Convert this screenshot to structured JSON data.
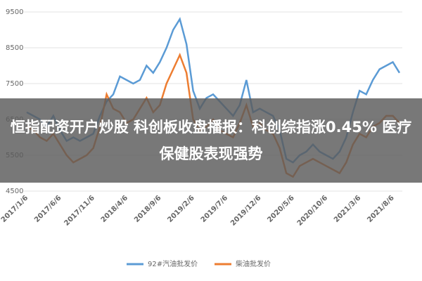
{
  "chart_data": {
    "type": "line",
    "categories": [
      "2017/1/6",
      null,
      null,
      null,
      null,
      "2017/6/6",
      null,
      null,
      null,
      null,
      "2017/11/6",
      null,
      null,
      null,
      null,
      "2018/4/6",
      null,
      null,
      null,
      null,
      "2018/9/6",
      null,
      null,
      null,
      null,
      "2019/2/6",
      null,
      null,
      null,
      null,
      "2019/7/6",
      null,
      null,
      null,
      null,
      "2019/12/6",
      null,
      null,
      null,
      null,
      "2020/5/6",
      null,
      null,
      null,
      null,
      "2020/10/6",
      null,
      null,
      null,
      null,
      "2021/3/6",
      null,
      null,
      null,
      null,
      "2021/8/6",
      null
    ],
    "series": [
      {
        "name": "92#汽油批发价",
        "color": "#5b9bd5",
        "values": [
          6700,
          6600,
          6500,
          6300,
          6600,
          6200,
          5900,
          6000,
          5900,
          6000,
          6100,
          6600,
          7000,
          7200,
          7700,
          7600,
          7500,
          7600,
          8000,
          7800,
          8100,
          8500,
          9000,
          9300,
          8600,
          7300,
          6800,
          7100,
          7200,
          7000,
          6800,
          6600,
          6900,
          7600,
          6700,
          6800,
          6700,
          6600,
          6200,
          5400,
          5300,
          5500,
          5600,
          5800,
          5600,
          5500,
          5400,
          5600,
          6000,
          6700,
          7300,
          7200,
          7600,
          7900,
          8000,
          8100,
          7800
        ]
      },
      {
        "name": "柴油批发价",
        "color": "#ed7d31",
        "values": [
          6300,
          6200,
          6000,
          5900,
          6100,
          5800,
          5500,
          5300,
          5400,
          5500,
          5700,
          6300,
          7200,
          6800,
          6700,
          6400,
          6500,
          6800,
          7100,
          6700,
          6900,
          7500,
          7900,
          8300,
          7800,
          6500,
          6200,
          6300,
          6500,
          6200,
          6100,
          6000,
          6400,
          6900,
          6300,
          6400,
          6200,
          6100,
          5700,
          5000,
          4900,
          5200,
          5300,
          5400,
          5300,
          5200,
          5100,
          5000,
          5300,
          5800,
          6100,
          6000,
          6300,
          6400,
          6600,
          6600,
          6400
        ]
      }
    ],
    "ylim": [
      4500,
      9500
    ],
    "yticks": [
      4500,
      5500,
      6500,
      7500,
      8500,
      9500
    ],
    "grid": true
  },
  "banner": {
    "text": "恒指配资开户炒股 科创板收盘播报：科创综指涨0.45% 医疗保健股表现强势"
  }
}
